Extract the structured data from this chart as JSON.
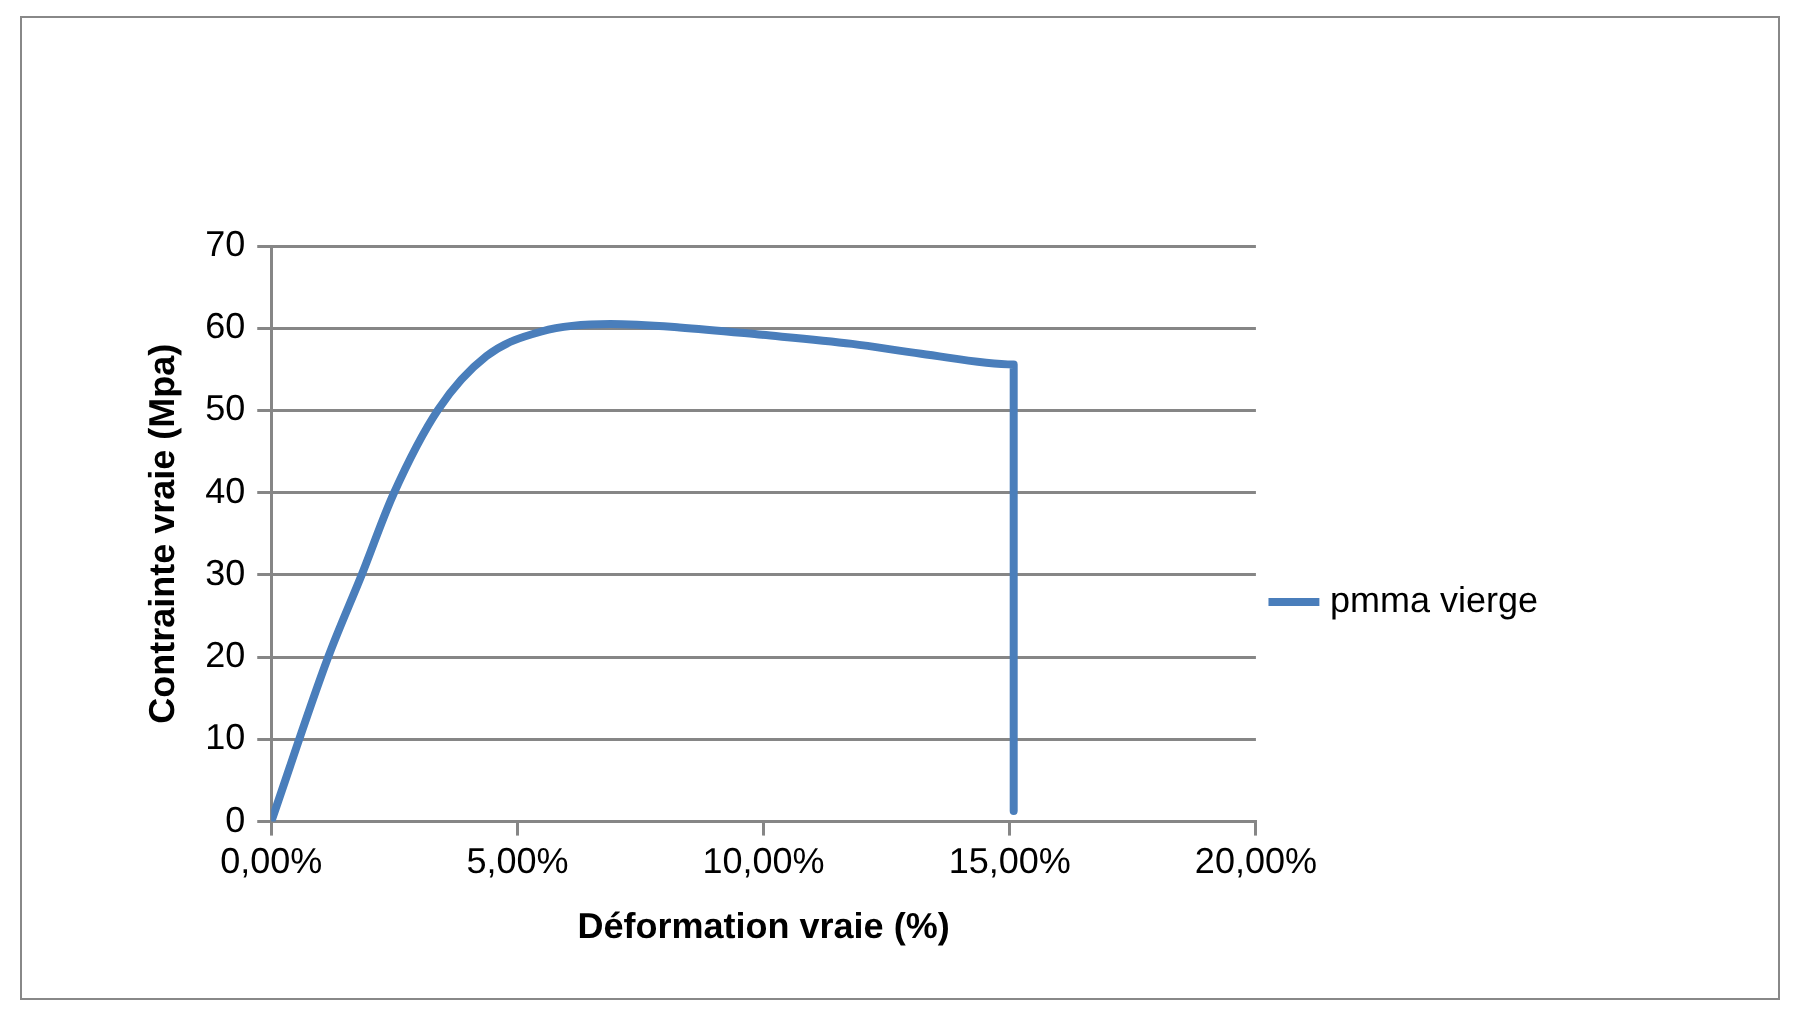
{
  "chart_data": {
    "type": "line",
    "xlabel": "Déformation vraie (%)",
    "ylabel": "Contrainte vraie (Mpa)",
    "x": [
      0,
      1.15,
      1.85,
      2.48,
      3.39,
      4.37,
      5.49,
      6.89,
      8.29,
      9.97,
      11.8,
      13.2,
      15.08,
      15.08
    ],
    "series": [
      {
        "name": "pmma vierge",
        "color": "#4a7ebb",
        "values": [
          0,
          19.9,
          30.2,
          39.8,
          50.1,
          56.6,
          59.6,
          60.5,
          60.1,
          59.2,
          58.1,
          56.9,
          55.6,
          1.3
        ]
      }
    ],
    "xlim": [
      0,
      20
    ],
    "xticks": [
      {
        "value": 0,
        "label": "0,00%"
      },
      {
        "value": 5,
        "label": "5,00%"
      },
      {
        "value": 10,
        "label": "10,00%"
      },
      {
        "value": 15,
        "label": "15,00%"
      },
      {
        "value": 20,
        "label": "20,00%"
      }
    ],
    "ylim": [
      0,
      70
    ],
    "yticks": [
      0,
      10,
      20,
      30,
      40,
      50,
      60,
      70
    ],
    "grid": "y",
    "legend": "right",
    "marker": "none",
    "line_style": "solid"
  }
}
